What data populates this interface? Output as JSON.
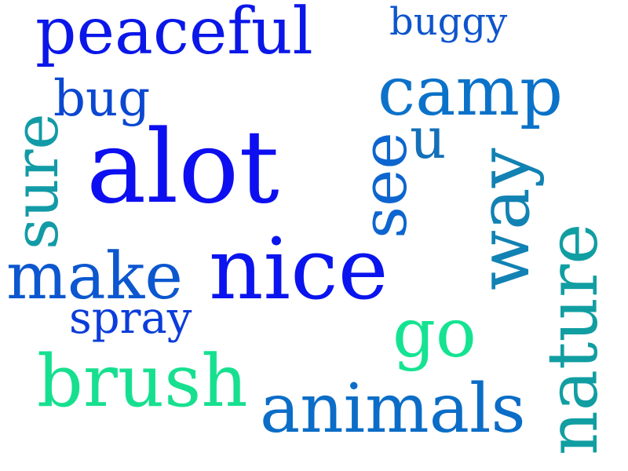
{
  "word_cloud": {
    "words": {
      "peaceful": "peaceful",
      "buggy": "buggy",
      "bug": "bug",
      "camp": "camp",
      "alot": "alot",
      "u": "u",
      "sure": "sure",
      "see": "see",
      "way": "way",
      "make": "make",
      "nice": "nice",
      "spray": "spray",
      "go": "go",
      "nature": "nature",
      "brush": "brush",
      "animals": "animals"
    },
    "colors": {
      "deep_blue": "#0a17e8",
      "blue": "#0b6dc7",
      "teal": "#119ea2",
      "green": "#16e08f"
    }
  }
}
